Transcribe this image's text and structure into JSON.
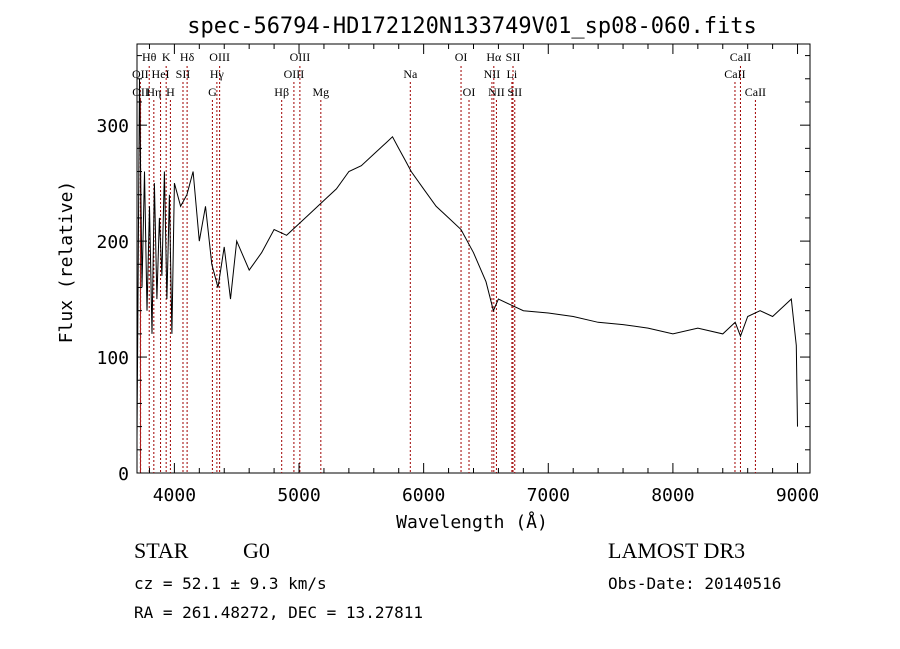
{
  "chart_data": {
    "type": "line",
    "title": "spec-56794-HD172120N133749V01_sp08-060.fits",
    "xlabel": "Wavelength (Å)",
    "ylabel": "Flux (relative)",
    "xlim": [
      3700,
      9100
    ],
    "ylim": [
      0,
      370
    ],
    "xticks": [
      4000,
      5000,
      6000,
      7000,
      8000,
      9000
    ],
    "yticks": [
      0,
      100,
      200,
      300
    ],
    "series": [
      {
        "x": [
          3700,
          3720,
          3740,
          3760,
          3780,
          3800,
          3820,
          3840,
          3860,
          3880,
          3900,
          3920,
          3940,
          3960,
          3980,
          4000,
          4050,
          4100,
          4150,
          4200,
          4250,
          4300,
          4350,
          4400,
          4450,
          4500,
          4600,
          4700,
          4800,
          4900,
          5000,
          5100,
          5200,
          5300,
          5400,
          5500,
          5600,
          5700,
          5750,
          5800,
          5850,
          5900,
          6000,
          6100,
          6200,
          6300,
          6400,
          6500,
          6560,
          6600,
          6700,
          6800,
          7000,
          7200,
          7400,
          7600,
          7800,
          8000,
          8200,
          8400,
          8500,
          8542,
          8600,
          8700,
          8800,
          8900,
          8950,
          8990,
          9000
        ],
        "y": [
          30,
          340,
          160,
          260,
          140,
          230,
          120,
          250,
          150,
          220,
          170,
          260,
          150,
          240,
          120,
          250,
          230,
          240,
          260,
          200,
          230,
          180,
          160,
          195,
          150,
          200,
          175,
          190,
          210,
          205,
          215,
          225,
          235,
          245,
          260,
          265,
          275,
          285,
          290,
          280,
          270,
          260,
          245,
          230,
          220,
          210,
          190,
          165,
          140,
          150,
          145,
          140,
          138,
          135,
          130,
          128,
          125,
          120,
          125,
          120,
          130,
          118,
          135,
          140,
          135,
          145,
          150,
          110,
          40
        ]
      }
    ],
    "line_markers": [
      {
        "label": "Hθ",
        "x": 3798,
        "row": 1
      },
      {
        "label": "OII",
        "x": 3727,
        "row": 2
      },
      {
        "label": "OII",
        "x": 3729,
        "row": 3
      },
      {
        "label": "K",
        "x": 3934,
        "row": 1
      },
      {
        "label": "HeI",
        "x": 3889,
        "row": 2
      },
      {
        "label": "Hη",
        "x": 3835,
        "row": 3
      },
      {
        "label": "SII",
        "x": 4069,
        "row": 2
      },
      {
        "label": "H",
        "x": 3968,
        "row": 3
      },
      {
        "label": "Hδ",
        "x": 4102,
        "row": 1
      },
      {
        "label": "OIII",
        "x": 4363,
        "row": 1
      },
      {
        "label": "Hγ",
        "x": 4341,
        "row": 2
      },
      {
        "label": "G",
        "x": 4305,
        "row": 3
      },
      {
        "label": "Hβ",
        "x": 4861,
        "row": 3
      },
      {
        "label": "OIII",
        "x": 5007,
        "row": 1
      },
      {
        "label": "OIII",
        "x": 4959,
        "row": 2
      },
      {
        "label": "Mg",
        "x": 5175,
        "row": 3
      },
      {
        "label": "Na",
        "x": 5893,
        "row": 2
      },
      {
        "label": "OI",
        "x": 6300,
        "row": 1
      },
      {
        "label": "OI",
        "x": 6364,
        "row": 3
      },
      {
        "label": "Hα",
        "x": 6563,
        "row": 1
      },
      {
        "label": "NII",
        "x": 6548,
        "row": 2
      },
      {
        "label": "NII",
        "x": 6584,
        "row": 3
      },
      {
        "label": "SII",
        "x": 6717,
        "row": 1
      },
      {
        "label": "Li",
        "x": 6708,
        "row": 2
      },
      {
        "label": "SII",
        "x": 6731,
        "row": 3
      },
      {
        "label": "CaII",
        "x": 8542,
        "row": 1
      },
      {
        "label": "CaII",
        "x": 8498,
        "row": 2
      },
      {
        "label": "CaII",
        "x": 8662,
        "row": 3
      }
    ]
  },
  "info": {
    "object_type": "STAR",
    "subclass": "G0",
    "survey": "LAMOST DR3",
    "cz": "cz = 52.1 ± 9.3 km/s",
    "obs_date": "Obs-Date: 20140516",
    "coords": "RA = 261.48272, DEC =  13.27811"
  }
}
